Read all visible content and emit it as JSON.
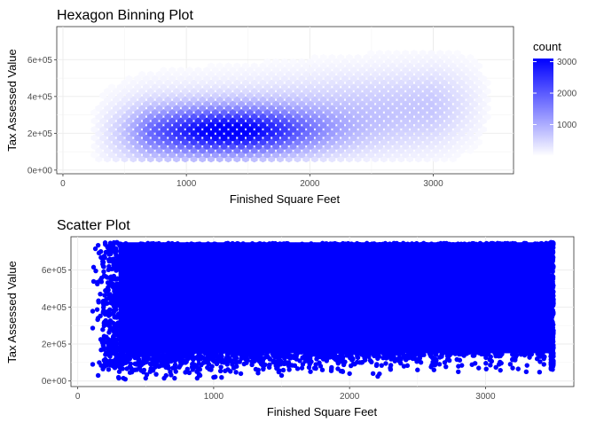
{
  "chart_data": [
    {
      "type": "heatmap",
      "title": "Hexagon Binning Plot",
      "xlabel": "Finished Square Feet",
      "ylabel": "Tax Assessed Value",
      "xlim": [
        -50,
        3650
      ],
      "ylim": [
        -20000,
        780000
      ],
      "x_ticks": [
        0,
        1000,
        2000,
        3000
      ],
      "x_tick_labels": [
        "0",
        "1000",
        "2000",
        "3000"
      ],
      "y_ticks": [
        0,
        200000,
        400000,
        600000
      ],
      "y_tick_labels": [
        "0e+00",
        "2e+05",
        "4e+05",
        "6e+05"
      ],
      "grid": true,
      "legend": {
        "title": "count",
        "position": "right",
        "range": [
          0,
          3100
        ],
        "breaks": [
          1000,
          2000,
          3000
        ],
        "break_labels": [
          "1000",
          "2000",
          "3000"
        ],
        "low_color": "#ffffff",
        "high_color": "#0000ff"
      },
      "density_model": {
        "description": "Counts per hex bin; peak near 1350 sq ft, 2.0e+05 value",
        "peak_count": 3100,
        "x_range": [
          200,
          3500
        ],
        "y_range": [
          50000,
          750000
        ]
      }
    },
    {
      "type": "scatter",
      "title": "Scatter Plot",
      "xlabel": "Finished Square Feet",
      "ylabel": "Tax Assessed Value",
      "xlim": [
        -50,
        3650
      ],
      "ylim": [
        -30000,
        780000
      ],
      "x_ticks": [
        0,
        1000,
        2000,
        3000
      ],
      "x_tick_labels": [
        "0",
        "1000",
        "2000",
        "3000"
      ],
      "y_ticks": [
        0,
        200000,
        400000,
        600000
      ],
      "y_tick_labels": [
        "0e+00",
        "2e+05",
        "4e+05",
        "6e+05"
      ],
      "grid": true,
      "point_color": "#0000ff",
      "points_dense_region": {
        "x": [
          300,
          3480
        ],
        "y": [
          150000,
          750000
        ]
      },
      "points_sparse_sample": [
        {
          "x": 130,
          "y": 715000
        },
        {
          "x": 170,
          "y": 700000
        },
        {
          "x": 110,
          "y": 90000
        },
        {
          "x": 150,
          "y": 30000
        },
        {
          "x": 200,
          "y": 80000
        },
        {
          "x": 190,
          "y": 380000
        },
        {
          "x": 150,
          "y": 340000
        },
        {
          "x": 220,
          "y": 500000
        },
        {
          "x": 260,
          "y": 560000
        },
        {
          "x": 300,
          "y": 20000
        },
        {
          "x": 350,
          "y": 10000
        },
        {
          "x": 420,
          "y": 60000
        },
        {
          "x": 500,
          "y": 15000
        },
        {
          "x": 650,
          "y": 30000
        },
        {
          "x": 800,
          "y": 50000
        },
        {
          "x": 1000,
          "y": 20000
        },
        {
          "x": 1200,
          "y": 40000
        },
        {
          "x": 1500,
          "y": 30000
        },
        {
          "x": 1800,
          "y": 60000
        },
        {
          "x": 2000,
          "y": 40000
        },
        {
          "x": 2200,
          "y": 90000
        },
        {
          "x": 2500,
          "y": 60000
        },
        {
          "x": 2800,
          "y": 50000
        },
        {
          "x": 2950,
          "y": 70000
        },
        {
          "x": 3100,
          "y": 90000
        },
        {
          "x": 3300,
          "y": 50000
        },
        {
          "x": 3430,
          "y": 90000
        },
        {
          "x": 3380,
          "y": 120000
        },
        {
          "x": 3200,
          "y": 70000
        },
        {
          "x": 2700,
          "y": 100000
        },
        {
          "x": 2400,
          "y": 80000
        },
        {
          "x": 1650,
          "y": 70000
        },
        {
          "x": 1100,
          "y": 90000
        },
        {
          "x": 900,
          "y": 30000
        },
        {
          "x": 700,
          "y": 70000
        },
        {
          "x": 550,
          "y": 110000
        }
      ]
    }
  ]
}
